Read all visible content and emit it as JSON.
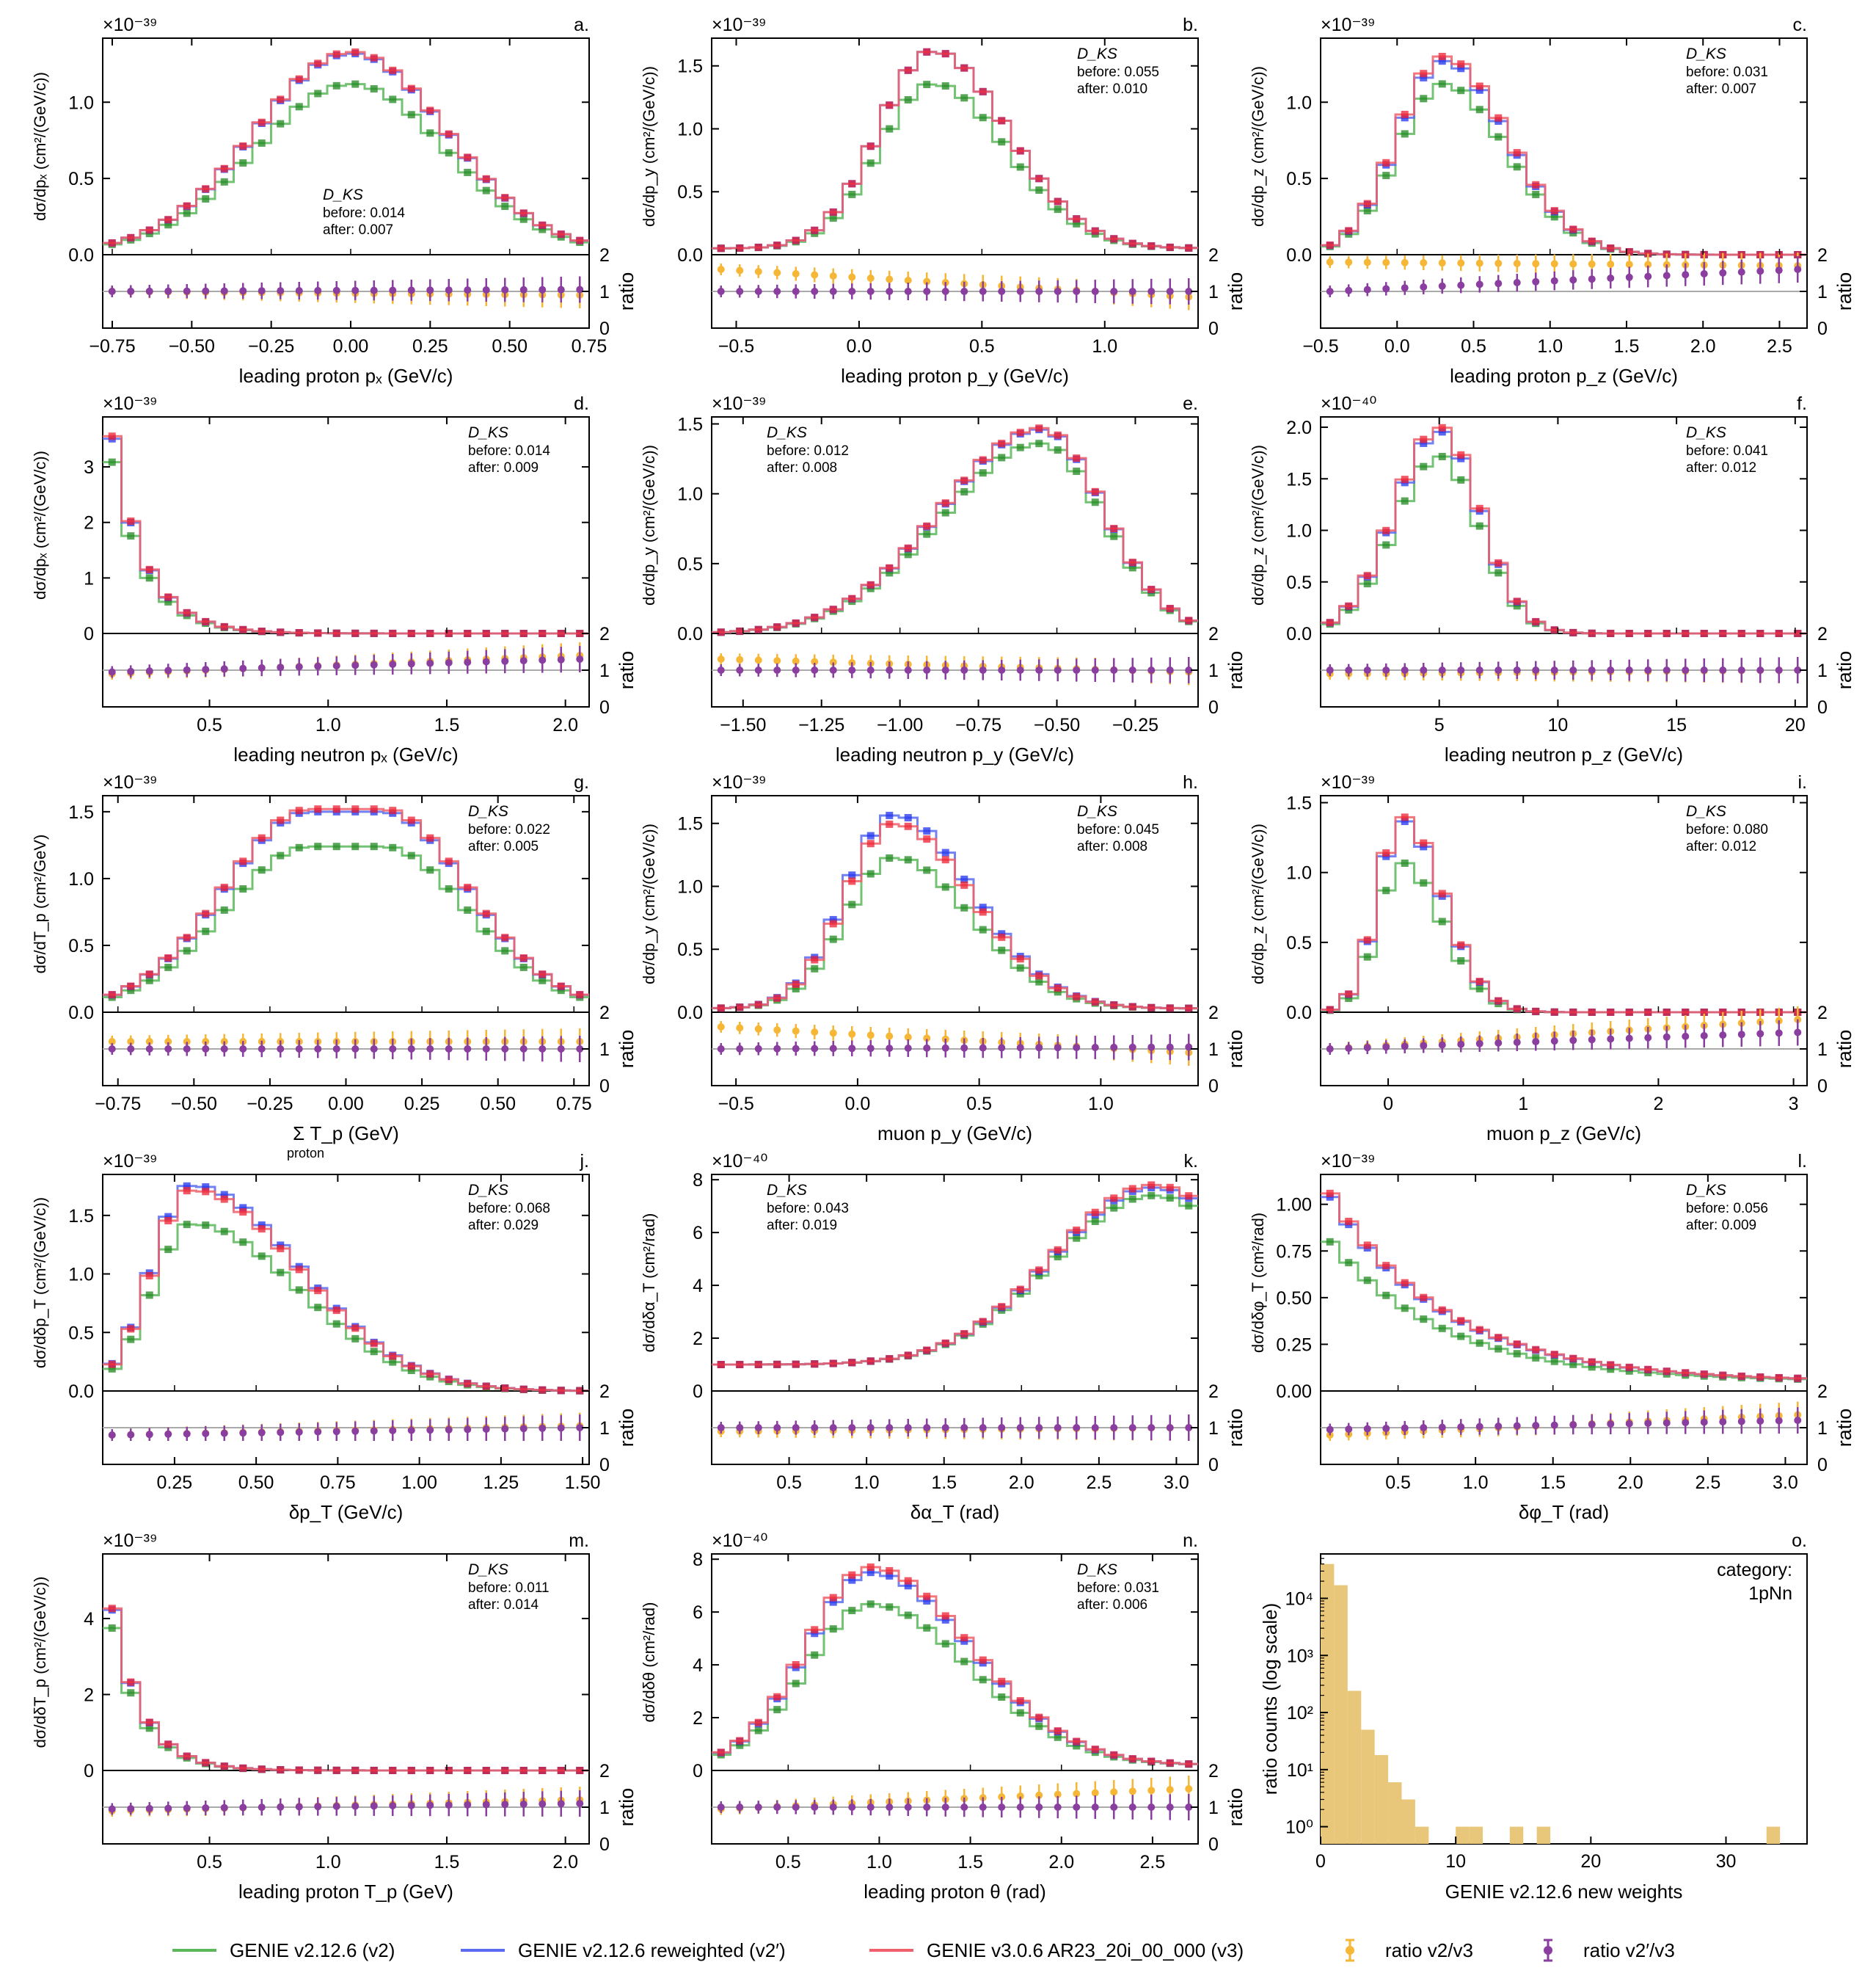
{
  "colors": {
    "v2": "#5cb85c",
    "v2p": "#5a6cf0",
    "v3": "#f0606a",
    "v2p_marker": "#2233ee",
    "v3_marker": "#ee2233",
    "v2_marker": "#228822",
    "ratio_v2": "#f6b636",
    "ratio_v2p": "#8a3ea0",
    "hist": "#e8c77a"
  },
  "legend": {
    "v2": "GENIE v2.12.6 (v2)",
    "v2p": "GENIE v2.12.6 reweighted (v2′)",
    "v3": "GENIE v3.0.6 AR23_20i_00_000 (v3)",
    "ratio_v2": "ratio v2/v3",
    "ratio_v2p": "ratio v2′/v3"
  },
  "chart_data": [
    {
      "id": "a",
      "label": "a.",
      "type": "line",
      "step": true,
      "exponent": "×10⁻³⁹",
      "ylabel": "dσ/dpₓ (cm²/(GeV/c))",
      "xlabel": "leading proton pₓ (GeV/c)",
      "xlim": [
        -0.78,
        0.75
      ],
      "ylim": [
        0,
        1.42
      ],
      "yticks": [
        "0.0",
        "0.5",
        "1.0"
      ],
      "ytickvals": [
        0,
        0.5,
        1.0
      ],
      "xticks": [
        "−0.75",
        "−0.50",
        "−0.25",
        "0.00",
        "0.25",
        "0.50",
        "0.75"
      ],
      "xtickvals": [
        -0.75,
        -0.5,
        -0.25,
        0,
        0.25,
        0.5,
        0.75
      ],
      "ks": {
        "title": "D_KS",
        "before": "before: 0.014",
        "after": "after: 0.007",
        "pos": "center"
      },
      "shape": {
        "kind": "gauss",
        "mu": 0,
        "sigma": 0.3,
        "peak_v3": 1.33,
        "peak_v2": 1.12,
        "peak_v2p": 1.32,
        "base": 0.02
      },
      "ratio": {
        "r2": [
          1.0,
          0.9
        ],
        "r2p": [
          1.0,
          1.05
        ]
      }
    },
    {
      "id": "b",
      "label": "b.",
      "type": "line",
      "step": true,
      "exponent": "×10⁻³⁹",
      "ylabel": "dσ/dp_y (cm²/(GeV/c))",
      "xlabel": "leading proton p_y (GeV/c)",
      "xlim": [
        -0.6,
        1.38
      ],
      "ylim": [
        0,
        1.72
      ],
      "yticks": [
        "0.0",
        "0.5",
        "1.0",
        "1.5"
      ],
      "ytickvals": [
        0,
        0.5,
        1.0,
        1.5
      ],
      "xticks": [
        "−0.5",
        "0.0",
        "0.5",
        "1.0"
      ],
      "xtickvals": [
        -0.5,
        0,
        0.5,
        1.0
      ],
      "ks": {
        "title": "D_KS",
        "before": "before: 0.055",
        "after": "after: 0.010",
        "pos": "right"
      },
      "shape": {
        "kind": "asym",
        "mu": 0.3,
        "sl": 0.22,
        "sr": 0.3,
        "peak_v3": 1.62,
        "peak_v2": 1.36,
        "peak_v2p": 1.62,
        "base": 0.05
      },
      "ratio": {
        "r2": [
          1.6,
          0.85
        ],
        "r2p": [
          1.0,
          1.0
        ]
      }
    },
    {
      "id": "c",
      "label": "c.",
      "type": "line",
      "step": true,
      "exponent": "×10⁻³⁹",
      "ylabel": "dσ/dp_z (cm²/(GeV/c))",
      "xlabel": "leading proton p_z (GeV/c)",
      "xlim": [
        -0.5,
        2.68
      ],
      "ylim": [
        0,
        1.42
      ],
      "yticks": [
        "0.0",
        "0.5",
        "1.0"
      ],
      "ytickvals": [
        0,
        0.5,
        1.0
      ],
      "xticks": [
        "−0.5",
        "0.0",
        "0.5",
        "1.0",
        "1.5",
        "2.0",
        "2.5"
      ],
      "xtickvals": [
        -0.5,
        0,
        0.5,
        1.0,
        1.5,
        2.0,
        2.5
      ],
      "ks": {
        "title": "D_KS",
        "before": "before: 0.031",
        "after": "after: 0.007",
        "pos": "right"
      },
      "shape": {
        "kind": "asym",
        "mu": 0.3,
        "sl": 0.3,
        "sr": 0.42,
        "peak_v3": 1.3,
        "peak_v2": 1.12,
        "peak_v2p": 1.27,
        "base": 0.0
      },
      "ratio": {
        "r2": [
          1.8,
          1.7
        ],
        "r2p": [
          1.0,
          1.6
        ]
      }
    },
    {
      "id": "d",
      "label": "d.",
      "type": "line",
      "step": true,
      "exponent": "×10⁻³⁹",
      "ylabel": "dσ/dpₓ (cm²/(GeV/c))",
      "xlabel": "leading neutron pₓ (GeV/c)",
      "xlim": [
        0.05,
        2.1
      ],
      "ylim": [
        0,
        3.9
      ],
      "yticks": [
        "0",
        "1",
        "2",
        "3"
      ],
      "ytickvals": [
        0,
        1,
        2,
        3
      ],
      "xticks": [
        "0.5",
        "1.0",
        "1.5",
        "2.0"
      ],
      "xtickvals": [
        0.5,
        1.0,
        1.5,
        2.0
      ],
      "ks": {
        "title": "D_KS",
        "before": "before: 0.014",
        "after": "after: 0.009",
        "pos": "right"
      },
      "shape": {
        "kind": "exp",
        "x0": 0.08,
        "tau": 0.14,
        "peak_v3": 3.8,
        "peak_v2": 3.3,
        "peak_v2p": 3.75,
        "base": 0.0
      },
      "ratio": {
        "r2": [
          0.9,
          1.4
        ],
        "r2p": [
          0.95,
          1.3
        ]
      }
    },
    {
      "id": "e",
      "label": "e.",
      "type": "line",
      "step": true,
      "exponent": "×10⁻³⁹",
      "ylabel": "dσ/dp_y (cm²/(GeV/c))",
      "xlabel": "leading neutron p_y (GeV/c)",
      "xlim": [
        -1.6,
        -0.05
      ],
      "ylim": [
        0,
        1.55
      ],
      "yticks": [
        "0.0",
        "0.5",
        "1.0",
        "1.5"
      ],
      "ytickvals": [
        0,
        0.5,
        1.0,
        1.5
      ],
      "xticks": [
        "−1.50",
        "−1.25",
        "−1.00",
        "−0.75",
        "−0.50",
        "−0.25"
      ],
      "xtickvals": [
        -1.5,
        -1.25,
        -1.0,
        -0.75,
        -0.5,
        -0.25
      ],
      "ks": {
        "title": "D_KS",
        "before": "before: 0.012",
        "after": "after: 0.008",
        "pos": "left"
      },
      "shape": {
        "kind": "asym",
        "mu": -0.55,
        "sl": 0.32,
        "sr": 0.2,
        "peak_v3": 1.47,
        "peak_v2": 1.36,
        "peak_v2p": 1.46,
        "base": 0.0
      },
      "ratio": {
        "r2": [
          1.3,
          0.95
        ],
        "r2p": [
          1.0,
          1.0
        ]
      }
    },
    {
      "id": "f",
      "label": "f.",
      "type": "line",
      "step": true,
      "exponent": "×10⁻⁴⁰",
      "ylabel": "dσ/dp_z (cm²/(GeV/c))",
      "xlabel": "leading neutron p_z (GeV/c)",
      "xlim": [
        0,
        20.5
      ],
      "ylim": [
        0,
        2.1
      ],
      "yticks": [
        "0.0",
        "0.5",
        "1.0",
        "1.5",
        "2.0"
      ],
      "ytickvals": [
        0,
        0.5,
        1.0,
        1.5,
        2.0
      ],
      "xticks": [
        "5",
        "10",
        "15",
        "20"
      ],
      "xtickvals": [
        5,
        10,
        15,
        20
      ],
      "ks": {
        "title": "D_KS",
        "before": "before: 0.041",
        "after": "after: 0.012",
        "pos": "right"
      },
      "shape": {
        "kind": "asym",
        "mu": 5,
        "sl": 1.9,
        "sr": 1.7,
        "peak_v3": 2.0,
        "peak_v2": 1.72,
        "peak_v2p": 1.96,
        "base": 0.0
      },
      "ratio": {
        "r2": [
          0.9,
          1.0
        ],
        "r2p": [
          1.0,
          1.0
        ]
      }
    },
    {
      "id": "g",
      "label": "g.",
      "type": "line",
      "step": true,
      "exponent": "×10⁻³⁹",
      "ylabel": "dσ/dT_p (cm²/GeV)",
      "xlabel": "Σ T_p (GeV)",
      "xlabel_sub": "proton",
      "xlim": [
        -0.8,
        0.8
      ],
      "ylim": [
        0,
        1.62
      ],
      "yticks": [
        "0.0",
        "0.5",
        "1.0",
        "1.5"
      ],
      "ytickvals": [
        0,
        0.5,
        1.0,
        1.5
      ],
      "xticks": [
        "−0.75",
        "−0.50",
        "−0.25",
        "0.00",
        "0.25",
        "0.50",
        "0.75"
      ],
      "xtickvals": [
        -0.75,
        -0.5,
        -0.25,
        0,
        0.25,
        0.5,
        0.75
      ],
      "ks": {
        "title": "D_KS",
        "before": "before: 0.022",
        "after": "after: 0.005",
        "pos": "right"
      },
      "shape": {
        "kind": "plateau",
        "mu": 0,
        "sigma": 0.28,
        "peak_v3": 1.52,
        "peak_v2": 1.24,
        "peak_v2p": 1.5,
        "base": 0.03
      },
      "ratio": {
        "r2": [
          1.2,
          1.2
        ],
        "r2p": [
          1.0,
          1.0
        ]
      }
    },
    {
      "id": "h",
      "label": "h.",
      "type": "line",
      "step": true,
      "exponent": "×10⁻³⁹",
      "ylabel": "dσ/dp_y (cm²/(GeV/c))",
      "xlabel": "muon p_y (GeV/c)",
      "xlim": [
        -0.6,
        1.4
      ],
      "ylim": [
        0,
        1.72
      ],
      "yticks": [
        "0.0",
        "0.5",
        "1.0",
        "1.5"
      ],
      "ytickvals": [
        0,
        0.5,
        1.0,
        1.5
      ],
      "xticks": [
        "−0.5",
        "0.0",
        "0.5",
        "1.0"
      ],
      "xtickvals": [
        -0.5,
        0,
        0.5,
        1.0
      ],
      "ks": {
        "title": "D_KS",
        "before": "before: 0.045",
        "after": "after: 0.008",
        "pos": "right"
      },
      "shape": {
        "kind": "asym",
        "mu": 0.15,
        "sl": 0.2,
        "sr": 0.32,
        "peak_v3": 1.5,
        "peak_v2": 1.23,
        "peak_v2p": 1.57,
        "base": 0.03
      },
      "ratio": {
        "r2": [
          1.6,
          0.9
        ],
        "r2p": [
          1.0,
          1.05
        ]
      }
    },
    {
      "id": "i",
      "label": "i.",
      "type": "line",
      "step": true,
      "exponent": "×10⁻³⁹",
      "ylabel": "dσ/dp_z (cm²/(GeV/c))",
      "xlabel": "muon p_z (GeV/c)",
      "xlim": [
        -0.5,
        3.1
      ],
      "ylim": [
        0,
        1.55
      ],
      "yticks": [
        "0.0",
        "0.5",
        "1.0",
        "1.5"
      ],
      "ytickvals": [
        0,
        0.5,
        1.0,
        1.5
      ],
      "xticks": [
        "0",
        "1",
        "2",
        "3"
      ],
      "xtickvals": [
        0,
        1,
        2,
        3
      ],
      "ks": {
        "title": "D_KS",
        "before": "before: 0.080",
        "after": "after: 0.012",
        "pos": "right"
      },
      "shape": {
        "kind": "asym",
        "mu": 0.1,
        "sl": 0.18,
        "sr": 0.3,
        "peak_v3": 1.4,
        "peak_v2": 1.07,
        "peak_v2p": 1.37,
        "base": 0.0
      },
      "ratio": {
        "r2": [
          1.0,
          1.8
        ],
        "r2p": [
          1.0,
          1.45
        ]
      }
    },
    {
      "id": "j",
      "label": "j.",
      "type": "line",
      "step": true,
      "exponent": "×10⁻³⁹",
      "ylabel": "dσ/dδp_T (cm²/(GeV/c))",
      "xlabel": "δp_T (GeV/c)",
      "xlim": [
        0.03,
        1.52
      ],
      "ylim": [
        0,
        1.85
      ],
      "yticks": [
        "0.0",
        "0.5",
        "1.0",
        "1.5"
      ],
      "ytickvals": [
        0,
        0.5,
        1.0,
        1.5
      ],
      "xticks": [
        "0.25",
        "0.50",
        "0.75",
        "1.00",
        "1.25",
        "1.50"
      ],
      "xtickvals": [
        0.25,
        0.5,
        0.75,
        1.0,
        1.25,
        1.5
      ],
      "ks": {
        "title": "D_KS",
        "before": "before: 0.068",
        "after": "after: 0.029",
        "pos": "right"
      },
      "shape": {
        "kind": "rise",
        "mu": 0.3,
        "sl": 0.12,
        "sr": 0.33,
        "peak_v3": 1.72,
        "peak_v2": 1.43,
        "peak_v2p": 1.76,
        "base": 0.0
      },
      "ratio": {
        "r2": [
          0.8,
          1.05
        ],
        "r2p": [
          0.8,
          1.0
        ]
      }
    },
    {
      "id": "k",
      "label": "k.",
      "type": "line",
      "step": true,
      "exponent": "×10⁻⁴⁰",
      "ylabel": "dσ/dδα_T (cm²/rad)",
      "xlabel": "δα_T (rad)",
      "xlim": [
        0,
        3.14
      ],
      "ylim": [
        0,
        8.2
      ],
      "yticks": [
        "0",
        "2",
        "4",
        "6",
        "8"
      ],
      "ytickvals": [
        0,
        2,
        4,
        6,
        8
      ],
      "xticks": [
        "0.5",
        "1.0",
        "1.5",
        "2.0",
        "2.5",
        "3.0"
      ],
      "xtickvals": [
        0.5,
        1,
        1.5,
        2,
        2.5,
        3
      ],
      "ks": {
        "title": "D_KS",
        "before": "before: 0.043",
        "after": "after: 0.019",
        "pos": "left"
      },
      "shape": {
        "kind": "alpha",
        "peak_v3": 7.8,
        "peak_v2": 7.4,
        "peak_v2p": 7.7,
        "base": 1.0
      },
      "ratio": {
        "r2": [
          0.9,
          1.0
        ],
        "r2p": [
          1.0,
          1.0
        ]
      }
    },
    {
      "id": "l",
      "label": "l.",
      "type": "line",
      "step": true,
      "exponent": "×10⁻³⁹",
      "ylabel": "dσ/dδφ_T (cm²/rad)",
      "xlabel": "δφ_T (rad)",
      "xlim": [
        0,
        3.14
      ],
      "ylim": [
        0,
        1.16
      ],
      "yticks": [
        "0.00",
        "0.25",
        "0.50",
        "0.75",
        "1.00"
      ],
      "ytickvals": [
        0,
        0.25,
        0.5,
        0.75,
        1.0
      ],
      "xticks": [
        "0.5",
        "1.0",
        "1.5",
        "2.0",
        "2.5",
        "3.0"
      ],
      "xtickvals": [
        0.5,
        1,
        1.5,
        2,
        2.5,
        3
      ],
      "ks": {
        "title": "D_KS",
        "before": "before: 0.056",
        "after": "after: 0.009",
        "pos": "right"
      },
      "shape": {
        "kind": "exp",
        "x0": 0.03,
        "tau": 0.75,
        "peak_v3": 1.1,
        "peak_v2": 0.83,
        "peak_v2p": 1.08,
        "base": 0.05
      },
      "ratio": {
        "r2": [
          0.8,
          1.35
        ],
        "r2p": [
          0.95,
          1.2
        ]
      }
    },
    {
      "id": "m",
      "label": "m.",
      "type": "line",
      "step": true,
      "exponent": "×10⁻³⁹",
      "ylabel": "dσ/dδT_p (cm²/(GeV/c))",
      "xlabel": "leading proton T_p (GeV)",
      "xlim": [
        0.05,
        2.1
      ],
      "ylim": [
        0,
        5.7
      ],
      "yticks": [
        "0",
        "2",
        "4"
      ],
      "ytickvals": [
        0,
        2,
        4
      ],
      "xticks": [
        "0.5",
        "1.0",
        "1.5",
        "2.0"
      ],
      "xtickvals": [
        0.5,
        1.0,
        1.5,
        2.0
      ],
      "ks": {
        "title": "D_KS",
        "before": "before: 0.011",
        "after": "after: 0.014",
        "pos": "right"
      },
      "shape": {
        "kind": "exp",
        "x0": 0.06,
        "tau": 0.13,
        "peak_v3": 5.35,
        "peak_v2": 4.7,
        "peak_v2p": 5.3,
        "base": 0.0
      },
      "ratio": {
        "r2": [
          0.9,
          1.2
        ],
        "r2p": [
          0.95,
          1.1
        ]
      }
    },
    {
      "id": "n",
      "label": "n.",
      "type": "line",
      "step": true,
      "exponent": "×10⁻⁴⁰",
      "ylabel": "dσ/dδθ (cm²/rad)",
      "xlabel": "leading proton θ (rad)",
      "xlim": [
        0.08,
        2.75
      ],
      "ylim": [
        0,
        8.2
      ],
      "yticks": [
        "0",
        "2",
        "4",
        "6",
        "8"
      ],
      "ytickvals": [
        0,
        2,
        4,
        6,
        8
      ],
      "xticks": [
        "0.5",
        "1.0",
        "1.5",
        "2.0",
        "2.5"
      ],
      "xtickvals": [
        0.5,
        1,
        1.5,
        2,
        2.5
      ],
      "ks": {
        "title": "D_KS",
        "before": "before: 0.031",
        "after": "after: 0.006",
        "pos": "right"
      },
      "shape": {
        "kind": "asym",
        "mu": 0.95,
        "sl": 0.35,
        "sr": 0.55,
        "peak_v3": 7.7,
        "peak_v2": 6.3,
        "peak_v2p": 7.5,
        "base": 0.2
      },
      "ratio": {
        "r2": [
          0.95,
          1.5
        ],
        "r2p": [
          1.0,
          1.0
        ]
      }
    },
    {
      "id": "o",
      "label": "o.",
      "type": "bar",
      "title": "category:",
      "subtitle": "1pNn",
      "xlabel": "GENIE v2.12.6 new weights",
      "ylabel": "counts (log scale)",
      "ylabel_prefix": "ratio",
      "xlim": [
        0,
        36
      ],
      "ylog": [
        0.5,
        60000
      ],
      "yticks": [
        "10⁰",
        "10¹",
        "10²",
        "10³",
        "10⁴"
      ],
      "ytickvals": [
        1,
        10,
        100,
        1000,
        10000
      ],
      "xticks": [
        "0",
        "10",
        "20",
        "30"
      ],
      "xtickvals": [
        0,
        10,
        20,
        30
      ],
      "bins": [
        0,
        1,
        2,
        3,
        4,
        5,
        6,
        7,
        8,
        9,
        10,
        11,
        12,
        13,
        14,
        15,
        16,
        17,
        18,
        19,
        20,
        21,
        22,
        23,
        24,
        25,
        26,
        27,
        28,
        29,
        30,
        31,
        32,
        33,
        34,
        35
      ],
      "counts": [
        40000,
        17000,
        240,
        50,
        18,
        6,
        3,
        1,
        0,
        0,
        1,
        1,
        0,
        0,
        1,
        0,
        1,
        0,
        0,
        0,
        0,
        0,
        0,
        0,
        0,
        0,
        0,
        0,
        0,
        0,
        0,
        0,
        0,
        1,
        0,
        0
      ]
    }
  ]
}
